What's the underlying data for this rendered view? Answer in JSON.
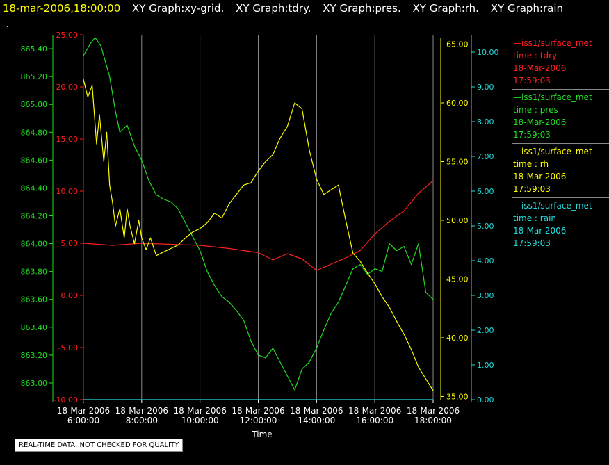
{
  "header": {
    "timestamp": "18-mar-2006,18:00:00",
    "plots": [
      "XY Graph:xy-grid.",
      "XY Graph:tdry.",
      "XY Graph:pres.",
      "XY Graph:rh.",
      "XY Graph:rain"
    ],
    "marker": "."
  },
  "notice": "REAL-TIME DATA, NOT CHECKED FOR QUALITY",
  "legend": [
    {
      "line": "—iss1/surface_met",
      "desc": "time : tdry",
      "date": "18-Mar-2006",
      "time": "17:59:03",
      "color": "#ff2020"
    },
    {
      "line": "—iss1/surface_met",
      "desc": "time : pres",
      "date": "18-Mar-2006",
      "time": "17:59:03",
      "color": "#22dd22"
    },
    {
      "line": "—iss1/surface_met",
      "desc": "time : rh",
      "date": "18-Mar-2006",
      "time": "17:59:03",
      "color": "#ffff00"
    },
    {
      "line": "—iss1/surface_met",
      "desc": "time : rain",
      "date": "18-Mar-2006",
      "time": "17:59:03",
      "color": "#22dddd"
    }
  ],
  "chart_data": {
    "type": "line",
    "xlabel": "Time",
    "x_ticks": [
      "18-Mar-2006 6:00:00",
      "18-Mar-2006 8:00:00",
      "18-Mar-2006 10:00:00",
      "18-Mar-2006 12:00:00",
      "18-Mar-2006 14:00:00",
      "18-Mar-2006 16:00:00",
      "18-Mar-2006 18:00:00"
    ],
    "x_tick_lines": [
      [
        "18-Mar-2006",
        "6:00:00"
      ],
      [
        "18-Mar-2006",
        "8:00:00"
      ],
      [
        "18-Mar-2006",
        "10:00:00"
      ],
      [
        "18-Mar-2006",
        "12:00:00"
      ],
      [
        "18-Mar-2006",
        "14:00:00"
      ],
      [
        "18-Mar-2006",
        "16:00:00"
      ],
      [
        "18-Mar-2006",
        "18:00:00"
      ]
    ],
    "grid": "vertical",
    "axes": [
      {
        "name": "tdry",
        "color": "#ff2020",
        "range": [
          -10,
          25
        ],
        "ticks": [
          "-10.00",
          "-5.00",
          "0.00",
          "5.00",
          "10.00",
          "15.00",
          "20.00",
          "25.00"
        ],
        "values": [
          -10,
          -5,
          0,
          5,
          10,
          15,
          20,
          25
        ]
      },
      {
        "name": "pres",
        "color": "#22dd22",
        "range": [
          862.88,
          865.5
        ],
        "ticks": [
          "863.00",
          "863.20",
          "863.40",
          "863.60",
          "863.80",
          "864.00",
          "864.20",
          "864.40",
          "864.60",
          "864.80",
          "865.00",
          "865.20",
          "865.40"
        ],
        "values": [
          863.0,
          863.2,
          863.4,
          863.6,
          863.8,
          864.0,
          864.2,
          864.4,
          864.6,
          864.8,
          865.0,
          865.2,
          865.4
        ]
      },
      {
        "name": "rh",
        "color": "#ffff00",
        "range": [
          34.73,
          65.8
        ],
        "ticks": [
          "35.00",
          "40.00",
          "45.00",
          "50.00",
          "55.00",
          "60.00",
          "65.00"
        ],
        "values": [
          35,
          40,
          45,
          50,
          55,
          60,
          65
        ]
      },
      {
        "name": "rain",
        "color": "#22dddd",
        "range": [
          0,
          10.5
        ],
        "ticks": [
          "0.00",
          "1.00",
          "2.00",
          "3.00",
          "4.00",
          "5.00",
          "6.00",
          "7.00",
          "8.00",
          "9.00",
          "10.00"
        ],
        "values": [
          0,
          1,
          2,
          3,
          4,
          5,
          6,
          7,
          8,
          9,
          10
        ]
      }
    ],
    "series": [
      {
        "name": "tdry",
        "axis": 0,
        "color": "#ff2020",
        "x": [
          6.0,
          7.0,
          8.0,
          9.0,
          10.0,
          11.0,
          12.0,
          12.5,
          13.0,
          13.5,
          14.0,
          14.5,
          15.0,
          15.5,
          16.0,
          16.5,
          17.0,
          17.5,
          18.0
        ],
        "y": [
          5.0,
          4.8,
          5.0,
          4.9,
          4.8,
          4.5,
          4.1,
          3.4,
          4.0,
          3.5,
          2.4,
          3.0,
          3.6,
          4.3,
          5.9,
          7.1,
          8.1,
          9.8,
          11.0
        ]
      },
      {
        "name": "pres",
        "axis": 1,
        "color": "#22dd22",
        "x": [
          6.0,
          6.25,
          6.4,
          6.6,
          6.9,
          7.1,
          7.25,
          7.5,
          7.75,
          8.0,
          8.25,
          8.5,
          8.75,
          9.0,
          9.25,
          9.5,
          9.75,
          10.0,
          10.25,
          10.5,
          10.75,
          11.0,
          11.25,
          11.5,
          11.75,
          12.0,
          12.25,
          12.5,
          12.75,
          13.0,
          13.25,
          13.5,
          13.75,
          14.0,
          14.25,
          14.5,
          14.75,
          15.0,
          15.25,
          15.5,
          15.75,
          16.0,
          16.25,
          16.5,
          16.75,
          17.0,
          17.25,
          17.5,
          17.75,
          18.0
        ],
        "y": [
          865.35,
          865.44,
          865.48,
          865.42,
          865.2,
          864.95,
          864.8,
          864.85,
          864.7,
          864.6,
          864.45,
          864.35,
          864.32,
          864.3,
          864.25,
          864.15,
          864.05,
          863.95,
          863.8,
          863.7,
          863.62,
          863.58,
          863.52,
          863.45,
          863.3,
          863.2,
          863.18,
          863.25,
          863.15,
          863.05,
          862.95,
          863.1,
          863.15,
          863.25,
          863.38,
          863.5,
          863.58,
          863.7,
          863.82,
          863.85,
          863.78,
          863.82,
          863.8,
          864.0,
          863.95,
          863.98,
          863.85,
          864.0,
          863.65,
          863.6
        ]
      },
      {
        "name": "rh",
        "axis": 2,
        "color": "#ffff00",
        "x": [
          6.0,
          6.15,
          6.3,
          6.45,
          6.55,
          6.7,
          6.8,
          6.9,
          7.0,
          7.1,
          7.25,
          7.4,
          7.5,
          7.6,
          7.75,
          7.9,
          8.0,
          8.15,
          8.3,
          8.5,
          8.75,
          9.0,
          9.25,
          9.5,
          9.75,
          10.0,
          10.25,
          10.5,
          10.75,
          11.0,
          11.25,
          11.5,
          11.75,
          12.0,
          12.25,
          12.5,
          12.75,
          13.0,
          13.25,
          13.5,
          13.75,
          14.0,
          14.25,
          14.5,
          14.75,
          15.0,
          15.25,
          15.5,
          15.75,
          16.0,
          16.25,
          16.5,
          16.75,
          17.0,
          17.25,
          17.5,
          17.75,
          18.0
        ],
        "y": [
          62.0,
          60.5,
          61.5,
          56.5,
          59.0,
          55.0,
          57.5,
          53.0,
          51.5,
          49.5,
          51.0,
          48.5,
          51.0,
          49.5,
          48.0,
          50.0,
          48.5,
          47.5,
          48.5,
          47.0,
          47.3,
          47.6,
          47.9,
          48.5,
          49.0,
          49.3,
          49.8,
          50.6,
          50.2,
          51.4,
          52.2,
          53.0,
          53.2,
          54.2,
          55.0,
          55.6,
          57.0,
          58.0,
          60.0,
          59.5,
          56.0,
          53.5,
          52.2,
          52.6,
          53.0,
          50.0,
          47.2,
          46.5,
          45.5,
          44.6,
          43.5,
          42.6,
          41.4,
          40.3,
          39.0,
          37.5,
          36.5,
          35.5
        ]
      },
      {
        "name": "rain",
        "axis": 3,
        "color": "#22dddd",
        "x": [
          6.0,
          18.0
        ],
        "y": [
          0.0,
          0.0
        ]
      }
    ]
  }
}
